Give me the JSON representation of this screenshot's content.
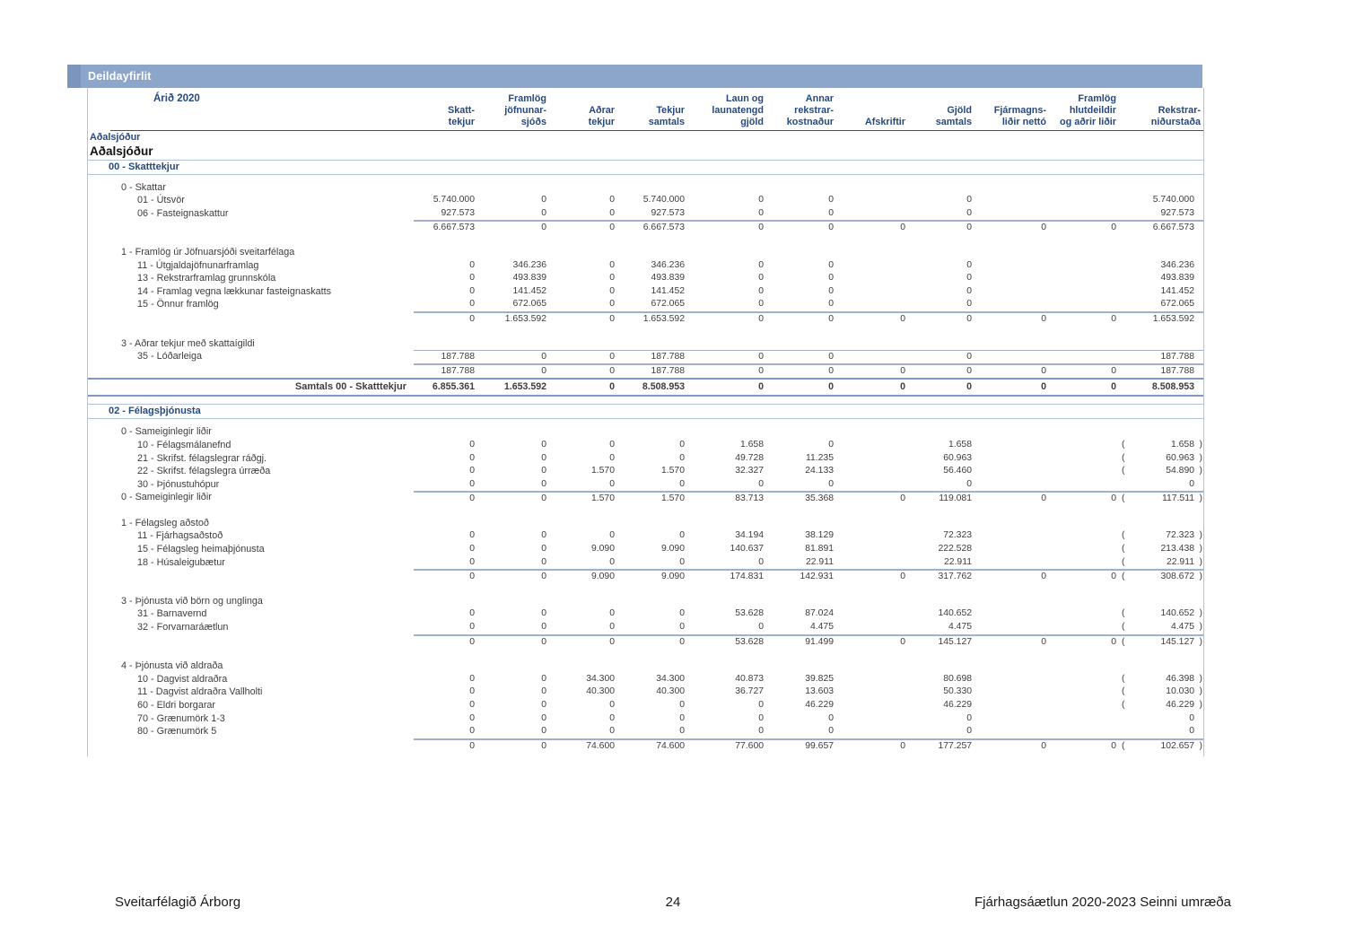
{
  "titlebar": {
    "label": "Deildayfirlit"
  },
  "colors": {
    "bar": "#8ca6cb",
    "bar_notch": "#7b95bc",
    "heading_navy": "#27497f",
    "rule_light": "#b0c3dc",
    "rule_dark": "#7e99c2"
  },
  "report": {
    "year_label": "Árið 2020",
    "fund_small": "Aðalsjóður",
    "fund_large": "Aðalsjóður",
    "columns": [
      [
        "Skatt-",
        "tekjur"
      ],
      [
        "Framlög",
        "jöfnunar-",
        "sjóðs"
      ],
      [
        "Aðrar",
        "tekjur"
      ],
      [
        "Tekjur",
        "samtals"
      ],
      [
        "Laun og",
        "launatengd",
        "gjöld"
      ],
      [
        "Annar",
        "rekstrar-",
        "kostnaður"
      ],
      [
        "Afskriftir"
      ],
      [
        "Gjöld",
        "samtals"
      ],
      [
        "Fjármagns-",
        "liðir nettó"
      ],
      [
        "Framlög",
        "hlutdeildir",
        "og aðrir liðir"
      ],
      [
        "Rekstrar-",
        "niðurstaða"
      ]
    ],
    "sections": [
      {
        "title": "00 - Skatttekjur",
        "groups": [
          {
            "label": "0 - Skattar",
            "rows": [
              {
                "label": "01 - Útsvör",
                "values": [
                  "5.740.000",
                  "0",
                  "0",
                  "5.740.000",
                  "0",
                  "0",
                  "",
                  "0",
                  "",
                  "",
                  "5.740.000"
                ]
              },
              {
                "label": "06 - Fasteignaskattur",
                "values": [
                  "927.573",
                  "0",
                  "0",
                  "927.573",
                  "0",
                  "0",
                  "",
                  "0",
                  "",
                  "",
                  "927.573"
                ]
              }
            ],
            "subtotal_label": "",
            "subtotal": [
              "6.667.573",
              "0",
              "0",
              "6.667.573",
              "0",
              "0",
              "0",
              "0",
              "0",
              "0",
              "6.667.573"
            ]
          },
          {
            "label": "1 - Framlög úr Jöfnuarsjóði sveitarfélaga",
            "rows": [
              {
                "label": "11 - Útgjaldajöfnunarframlag",
                "values": [
                  "0",
                  "346.236",
                  "0",
                  "346.236",
                  "0",
                  "0",
                  "",
                  "0",
                  "",
                  "",
                  "346.236"
                ]
              },
              {
                "label": "13 - Rekstrarframlag grunnskóla",
                "values": [
                  "0",
                  "493.839",
                  "0",
                  "493.839",
                  "0",
                  "0",
                  "",
                  "0",
                  "",
                  "",
                  "493.839"
                ]
              },
              {
                "label": "14 - Framlag vegna lækkunar fasteignaskatts",
                "values": [
                  "0",
                  "141.452",
                  "0",
                  "141.452",
                  "0",
                  "0",
                  "",
                  "0",
                  "",
                  "",
                  "141.452"
                ]
              },
              {
                "label": "15 - Önnur framlög",
                "values": [
                  "0",
                  "672.065",
                  "0",
                  "672.065",
                  "0",
                  "0",
                  "",
                  "0",
                  "",
                  "",
                  "672.065"
                ]
              }
            ],
            "subtotal_label": "",
            "subtotal": [
              "0",
              "1.653.592",
              "0",
              "1.653.592",
              "0",
              "0",
              "0",
              "0",
              "0",
              "0",
              "1.653.592"
            ]
          },
          {
            "label": "3 - Aðrar tekjur með skattaígildi",
            "rows": [
              {
                "label": "35 - Lóðarleiga",
                "overline": true,
                "values": [
                  "187.788",
                  "0",
                  "0",
                  "187.788",
                  "0",
                  "0",
                  "",
                  "0",
                  "",
                  "",
                  "187.788"
                ]
              }
            ],
            "subtotal_label": "",
            "subtotal": [
              "187.788",
              "0",
              "0",
              "187.788",
              "0",
              "0",
              "0",
              "0",
              "0",
              "0",
              "187.788"
            ]
          }
        ],
        "total": {
          "label": "Samtals 00 - Skatttekjur",
          "values": [
            "6.855.361",
            "1.653.592",
            "0",
            "8.508.953",
            "0",
            "0",
            "0",
            "0",
            "0",
            "0",
            "8.508.953"
          ]
        }
      },
      {
        "title": "02 - Félagsþjónusta",
        "groups": [
          {
            "label": "0 - Sameiginlegir liðir",
            "rows": [
              {
                "label": "10 - Félagsmálanefnd",
                "values": [
                  "0",
                  "0",
                  "0",
                  "0",
                  "1.658",
                  "0",
                  "",
                  "1.658",
                  "",
                  "",
                  "( 1.658 )"
                ]
              },
              {
                "label": "21 - Skrifst. félagslegrar ráðgj.",
                "values": [
                  "0",
                  "0",
                  "0",
                  "0",
                  "49.728",
                  "11.235",
                  "",
                  "60.963",
                  "",
                  "",
                  "( 60.963 )"
                ]
              },
              {
                "label": "22 - Skrifst. félagslegra úrræða",
                "values": [
                  "0",
                  "0",
                  "1.570",
                  "1.570",
                  "32.327",
                  "24.133",
                  "",
                  "56.460",
                  "",
                  "",
                  "( 54.890 )"
                ]
              },
              {
                "label": "30 - Þjónustuhópur",
                "values": [
                  "0",
                  "0",
                  "0",
                  "0",
                  "0",
                  "0",
                  "",
                  "0",
                  "",
                  "",
                  "0"
                ]
              }
            ],
            "subtotal_label": "0 - Sameiginlegir liðir",
            "subtotal": [
              "0",
              "0",
              "1.570",
              "1.570",
              "83.713",
              "35.368",
              "0",
              "119.081",
              "0",
              "0",
              "( 117.511 )"
            ]
          },
          {
            "label": "1 - Félagsleg aðstoð",
            "rows": [
              {
                "label": "11 - Fjárhagsaðstoð",
                "values": [
                  "0",
                  "0",
                  "0",
                  "0",
                  "34.194",
                  "38.129",
                  "",
                  "72.323",
                  "",
                  "",
                  "( 72.323 )"
                ]
              },
              {
                "label": "15 - Félagsleg heimaþjónusta",
                "values": [
                  "0",
                  "0",
                  "9.090",
                  "9.090",
                  "140.637",
                  "81.891",
                  "",
                  "222.528",
                  "",
                  "",
                  "( 213.438 )"
                ]
              },
              {
                "label": "18 - Húsaleigubætur",
                "values": [
                  "0",
                  "0",
                  "0",
                  "0",
                  "0",
                  "22.911",
                  "",
                  "22.911",
                  "",
                  "",
                  "( 22.911 )"
                ]
              }
            ],
            "subtotal_label": "",
            "subtotal": [
              "0",
              "0",
              "9.090",
              "9.090",
              "174.831",
              "142.931",
              "0",
              "317.762",
              "0",
              "0",
              "( 308.672 )"
            ]
          },
          {
            "label": "3 - Þjónusta við börn og unglinga",
            "rows": [
              {
                "label": "31 - Barnavernd",
                "values": [
                  "0",
                  "0",
                  "0",
                  "0",
                  "53.628",
                  "87.024",
                  "",
                  "140.652",
                  "",
                  "",
                  "( 140.652 )"
                ]
              },
              {
                "label": "32 - Forvarnaráætlun",
                "values": [
                  "0",
                  "0",
                  "0",
                  "0",
                  "0",
                  "4.475",
                  "",
                  "4.475",
                  "",
                  "",
                  "( 4.475 )"
                ]
              }
            ],
            "subtotal_label": "",
            "subtotal": [
              "0",
              "0",
              "0",
              "0",
              "53.628",
              "91.499",
              "0",
              "145.127",
              "0",
              "0",
              "( 145.127 )"
            ]
          },
          {
            "label": "4 - Þjónusta við aldraða",
            "rows": [
              {
                "label": "10 - Dagvist aldraðra",
                "values": [
                  "0",
                  "0",
                  "34.300",
                  "34.300",
                  "40.873",
                  "39.825",
                  "",
                  "80.698",
                  "",
                  "",
                  "( 46.398 )"
                ]
              },
              {
                "label": "11 - Dagvist aldraðra Vallholti",
                "values": [
                  "0",
                  "0",
                  "40.300",
                  "40.300",
                  "36.727",
                  "13.603",
                  "",
                  "50.330",
                  "",
                  "",
                  "( 10.030 )"
                ]
              },
              {
                "label": "60 - Eldri borgarar",
                "values": [
                  "0",
                  "0",
                  "0",
                  "0",
                  "0",
                  "46.229",
                  "",
                  "46.229",
                  "",
                  "",
                  "( 46.229 )"
                ]
              },
              {
                "label": "70 - Grænumörk 1-3",
                "values": [
                  "0",
                  "0",
                  "0",
                  "0",
                  "0",
                  "0",
                  "",
                  "0",
                  "",
                  "",
                  "0"
                ]
              },
              {
                "label": "80 - Grænumörk 5",
                "values": [
                  "0",
                  "0",
                  "0",
                  "0",
                  "0",
                  "0",
                  "",
                  "0",
                  "",
                  "",
                  "0"
                ]
              }
            ],
            "subtotal_label": "",
            "subtotal": [
              "0",
              "0",
              "74.600",
              "74.600",
              "77.600",
              "99.657",
              "0",
              "177.257",
              "0",
              "0",
              "( 102.657 )"
            ]
          }
        ]
      }
    ]
  },
  "footer": {
    "left": "Sveitarfélagið Árborg",
    "page": "24",
    "right": "Fjárhagsáætlun 2020-2023 Seinni umræða"
  }
}
